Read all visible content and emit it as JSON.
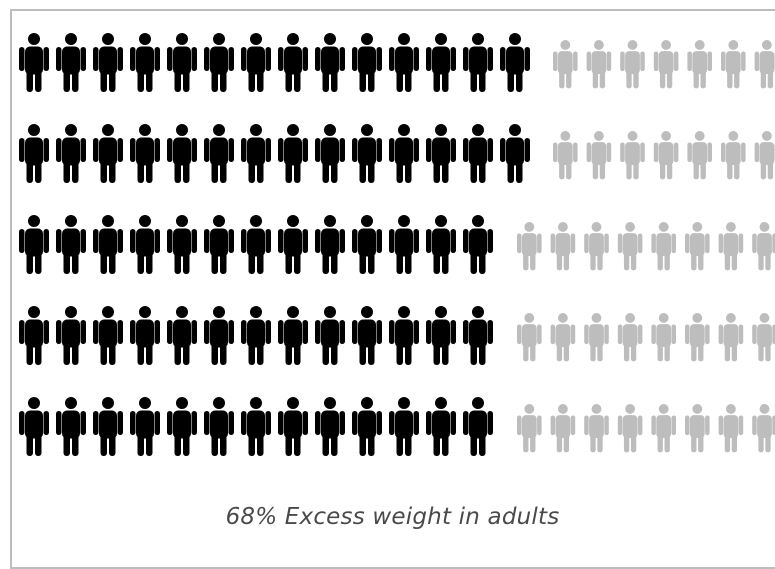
{
  "chart_data": {
    "type": "pictogram",
    "caption": "68% Excess weight in adults",
    "unit_icon": "person-icon",
    "percent_highlighted": 68,
    "rows": [
      {
        "highlighted": 14
      },
      {
        "highlighted": 14
      },
      {
        "highlighted": 13
      },
      {
        "highlighted": 13
      },
      {
        "highlighted": 13
      }
    ],
    "colors": {
      "highlighted": "#000000",
      "other": "#bdbdbd"
    }
  }
}
